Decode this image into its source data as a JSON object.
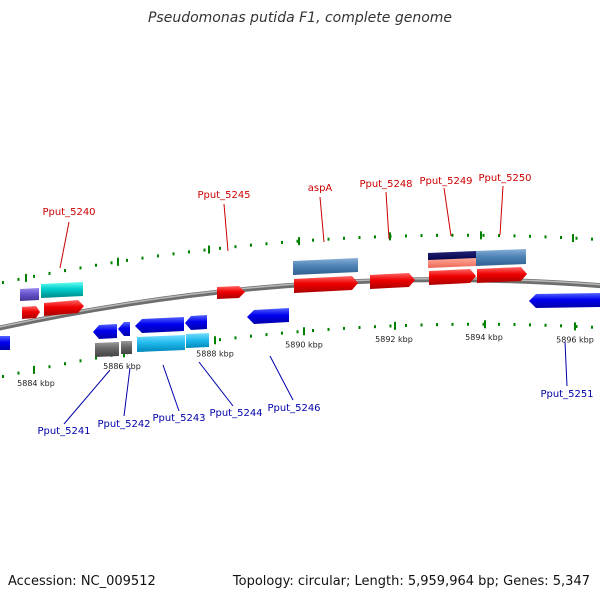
{
  "title": "Pseudomonas putida F1, complete genome",
  "footer": {
    "accession": "Accession: NC_009512",
    "summary": "Topology: circular; Length: 5,959,964 bp; Genes: 5,347"
  },
  "colors": {
    "forward_label": "#cc0000",
    "reverse_label": "#0000aa",
    "tick": "#008000",
    "backbone": "#888888"
  },
  "ticks": [
    {
      "label": "5884 kbp"
    },
    {
      "label": "5886 kbp"
    },
    {
      "label": "5888 kbp"
    },
    {
      "label": "5890 kbp"
    },
    {
      "label": "5892 kbp"
    },
    {
      "label": "5894 kbp"
    },
    {
      "label": "5896 kbp"
    }
  ],
  "forward_labels": [
    "Pput_5240",
    "Pput_5245",
    "aspA",
    "Pput_5248",
    "Pput_5249",
    "Pput_5250"
  ],
  "reverse_labels": [
    "Pput_5241",
    "Pput_5242",
    "Pput_5243",
    "Pput_5244",
    "Pput_5246",
    "Pput_5251"
  ]
}
